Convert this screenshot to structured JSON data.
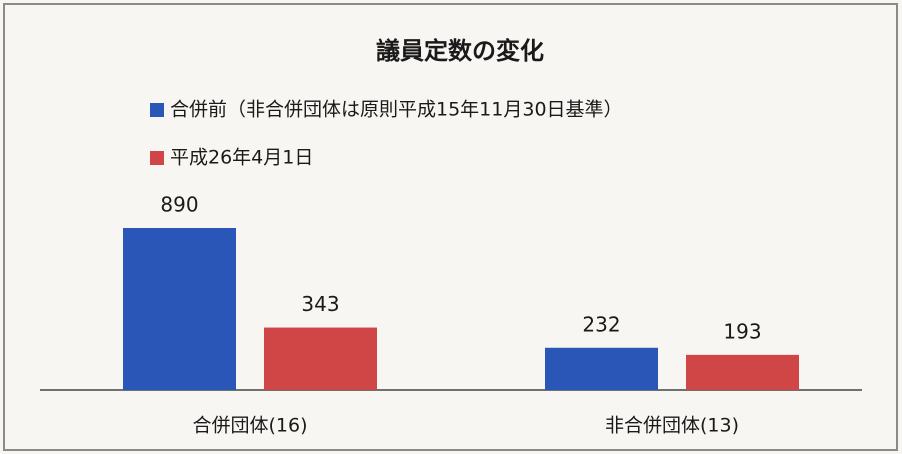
{
  "chart_data": {
    "type": "bar",
    "title": "議員定数の変化",
    "categories": [
      "合併団体(16)",
      "非合併団体(13)"
    ],
    "series": [
      {
        "name": "合併前（非合併団体は原則平成15年11月30日基準）",
        "color": "#2a56b8",
        "values": [
          890,
          232
        ]
      },
      {
        "name": "平成26年4月1日",
        "color": "#d04545",
        "values": [
          343,
          193
        ]
      }
    ]
  }
}
